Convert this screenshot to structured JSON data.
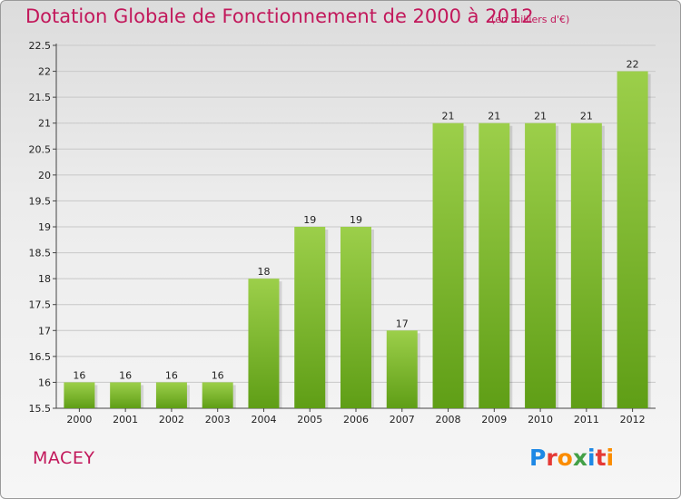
{
  "title": "Dotation Globale de Fonctionnement de 2000 à 2012",
  "unit": "(en milliers d'€)",
  "commune": "MACEY",
  "logo": {
    "letters": [
      "P",
      "r",
      "o",
      "x",
      "i",
      "t",
      "i"
    ],
    "colors": [
      "#1e88e5",
      "#e53935",
      "#fb8c00",
      "#43a047",
      "#1e88e5",
      "#e53935",
      "#fb8c00"
    ]
  },
  "colors": {
    "bar_top": "#9ccf4a",
    "bar_bottom": "#5f9e16",
    "title": "#c2185b",
    "grid": "#c8c8c8"
  },
  "chart_data": {
    "type": "bar",
    "categories": [
      "2000",
      "2001",
      "2002",
      "2003",
      "2004",
      "2005",
      "2006",
      "2007",
      "2008",
      "2009",
      "2010",
      "2011",
      "2012"
    ],
    "values": [
      16,
      16,
      16,
      16,
      18,
      19,
      19,
      17,
      21,
      21,
      21,
      21,
      22
    ],
    "data_labels": [
      "16",
      "16",
      "16",
      "16",
      "18",
      "19",
      "19",
      "17",
      "21",
      "21",
      "21",
      "21",
      "22"
    ],
    "ylim": [
      15.5,
      22.5
    ],
    "yticks": [
      15.5,
      16,
      16.5,
      17,
      17.5,
      18,
      18.5,
      19,
      19.5,
      20,
      20.5,
      21,
      21.5,
      22,
      22.5
    ],
    "ytick_labels": [
      "15.5",
      "16",
      "16.5",
      "17",
      "17.5",
      "18",
      "18.5",
      "19",
      "19.5",
      "20",
      "20.5",
      "21",
      "21.5",
      "22",
      "22.5"
    ],
    "grid": true,
    "title": "Dotation Globale de Fonctionnement de 2000 à 2012",
    "xlabel": "",
    "ylabel": ""
  }
}
